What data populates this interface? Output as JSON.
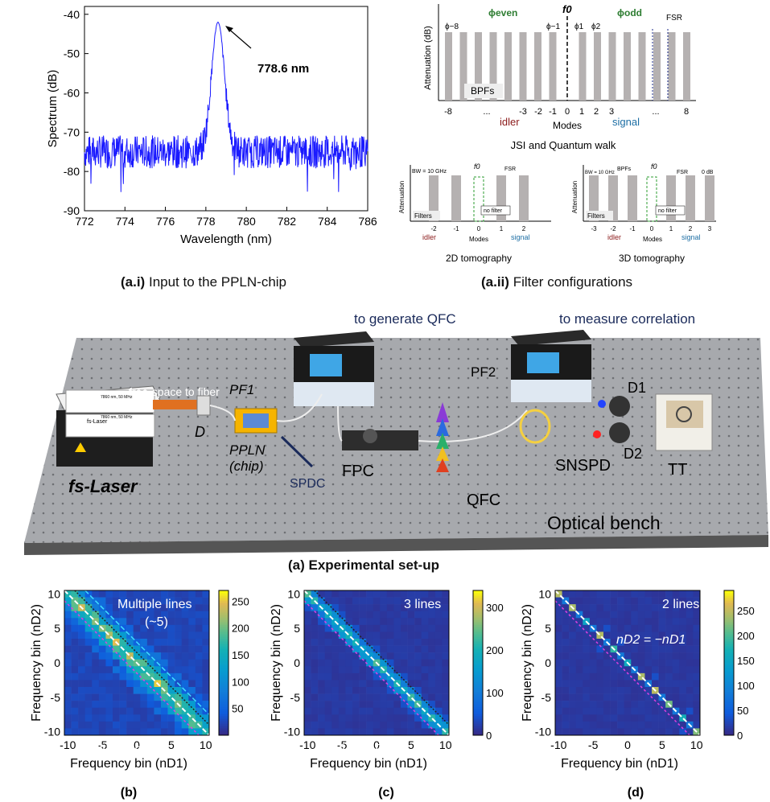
{
  "spectrum": {
    "ylabel": "Spectrum (dB)",
    "xlabel": "Wavelength (nm)",
    "peak_label": "778.6 nm",
    "yticks": [
      "-40",
      "-50",
      "-60",
      "-70",
      "-80",
      "-90"
    ],
    "xticks": [
      "772",
      "774",
      "776",
      "778",
      "780",
      "782",
      "784",
      "786"
    ],
    "caption_tag": "(a.i)",
    "caption_text": "Input to the PPLN-chip"
  },
  "chart_data": [
    {
      "type": "line",
      "title": "",
      "xlabel": "Wavelength (nm)",
      "ylabel": "Spectrum (dB)",
      "xlim": [
        772,
        786
      ],
      "ylim": [
        -90,
        -38
      ],
      "noise_floor_db": -75,
      "series": [
        {
          "name": "spectrum",
          "x": [
            772,
            776,
            777.8,
            778.2,
            778.6,
            779.0,
            779.4,
            780,
            786
          ],
          "y": [
            -75,
            -75,
            -70,
            -55,
            -42,
            -52,
            -68,
            -75,
            -75
          ]
        }
      ],
      "annotations": [
        "778.6 nm"
      ]
    },
    {
      "type": "heatmap",
      "title": "Multiple lines (~5)",
      "xlabel": "Frequency bin (nD1)",
      "ylabel": "Frequency bin (nD2)",
      "xlim": [
        -10,
        10
      ],
      "ylim": [
        -10,
        10
      ],
      "colorbar_ticks": [
        50,
        100,
        150,
        200,
        250
      ],
      "colorbar_max": 270,
      "anti_diagonal_lines": 5,
      "peak": 260,
      "background": 15
    },
    {
      "type": "heatmap",
      "title": "3 lines",
      "xlabel": "Frequency bin (nD1)",
      "ylabel": "Frequency bin (nD2)",
      "xlim": [
        -10,
        10
      ],
      "ylim": [
        -10,
        10
      ],
      "colorbar_ticks": [
        0,
        100,
        200,
        300
      ],
      "colorbar_max": 340,
      "anti_diagonal_lines": 3,
      "peak": 320,
      "background": 10
    },
    {
      "type": "heatmap",
      "title": "2 lines",
      "xlabel": "Frequency bin (nD1)",
      "ylabel": "Frequency bin (nD2)",
      "xlim": [
        -10,
        10
      ],
      "ylim": [
        -10,
        10
      ],
      "colorbar_ticks": [
        0,
        50,
        100,
        150,
        200,
        250
      ],
      "colorbar_max": 290,
      "anti_diagonal_lines": 2,
      "peak": 270,
      "background": 8
    }
  ],
  "filters": {
    "top": {
      "ylabel": "Attenuation (dB)",
      "xlabel": "Modes",
      "phi_even": "ϕeven",
      "phi_odd": "ϕodd",
      "f0": "f0",
      "fsr": "FSR",
      "bpfs": "BPFs",
      "idler": "idler",
      "signal": "signal",
      "phi_labels": [
        "ϕ−8",
        "ϕ−1",
        "ϕ1",
        "ϕ2"
      ],
      "mode_ticks": [
        "-8",
        "...",
        "-3",
        "-2",
        "-1",
        "0",
        "1",
        "2",
        "3",
        "...",
        "8"
      ],
      "title": "JSI and Quantum walk"
    },
    "tomo2d": {
      "ylabel": "Attenuation",
      "bw": "BW = 10 GHz",
      "f0": "f0",
      "fsr": "FSR",
      "filters": "Filters",
      "no_filter": "no filter",
      "ticks": [
        "-2",
        "-1",
        "0",
        "1",
        "2"
      ],
      "xlabel": "Modes",
      "idler": "idler",
      "signal": "signal",
      "title": "2D tomography"
    },
    "tomo3d": {
      "ylabel": "Attenuation",
      "bw": "BW = 10 GHz",
      "bpfs": "BPFs",
      "f0": "f0",
      "fsr": "FSR",
      "zero_db": "0 dB",
      "filters": "Filters",
      "no_filter": "no filter",
      "ticks": [
        "-3",
        "-2",
        "-1",
        "0",
        "1",
        "2",
        "3"
      ],
      "xlabel": "Modes",
      "idler": "idler",
      "signal": "signal",
      "title": "3D tomography"
    },
    "caption_tag": "(a.ii)",
    "caption_text": "Filter configurations"
  },
  "setup": {
    "gen_qfc": "to generate QFC",
    "measure_corr": "to measure correlation",
    "free_space": "free-space to fiber",
    "laser_label1": "7860 nm, 50 MHz",
    "laser_label2": "fs-Laser",
    "laser_label3": "7860 nm, 50 MHz",
    "pf1": "PF1",
    "pf2": "PF2",
    "d": "D",
    "d1": "D1",
    "d2": "D2",
    "ppln": "PPLN",
    "chip": "(chip)",
    "spdc": "SPDC",
    "fs_laser": "fs-Laser",
    "fpc": "FPC",
    "qfc": "QFC",
    "snspd": "SNSPD",
    "tt": "TT",
    "bench": "Optical bench",
    "caption": "(a) Experimental set-up"
  },
  "heatmaps": {
    "xlabel": "Frequency bin (nD1)",
    "ylabel": "Frequency bin (nD2)",
    "ticks": [
      "-10",
      "-5",
      "0",
      "5",
      "10"
    ],
    "b": {
      "label": "Multiple lines",
      "sub": "(~5)",
      "cbar": [
        "250",
        "200",
        "150",
        "100",
        "50"
      ],
      "caption": "(b)"
    },
    "c": {
      "label": "3 lines",
      "cbar": [
        "300",
        "200",
        "100",
        "0"
      ],
      "caption": "(c)"
    },
    "d": {
      "label": "2 lines",
      "cbar": [
        "250",
        "200",
        "150",
        "100",
        "50",
        "0"
      ],
      "caption": "(d)"
    },
    "relation": "nD2 = −nD1"
  }
}
